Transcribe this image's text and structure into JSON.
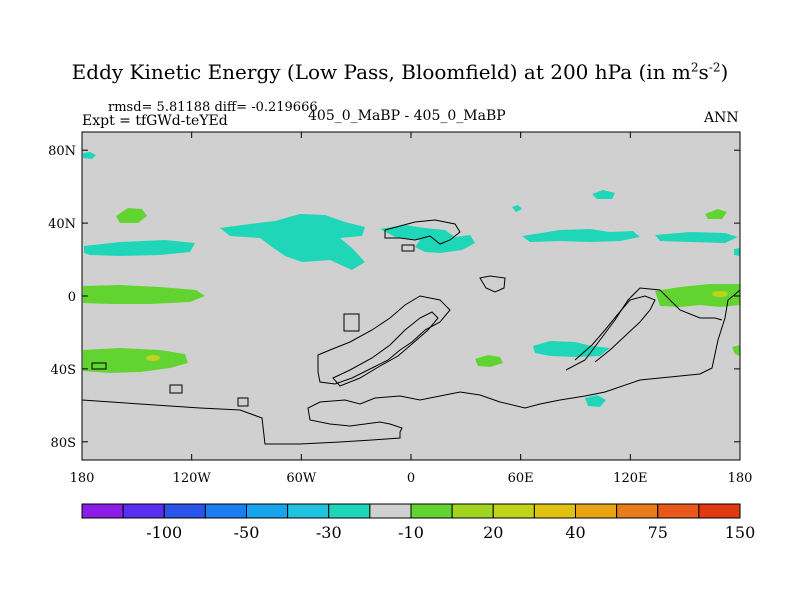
{
  "title": {
    "text": "Eddy Kinetic Energy (Low Pass, Bloomfield) at 200 hPa (in m",
    "sup1": "2",
    "mid": "s",
    "sup2": "-2",
    "end": ")"
  },
  "stats": {
    "rmsd": "rmsd= 5.81188 diff= -0.219666"
  },
  "experiment": "Expt = tfGWd-teYEd",
  "comparison": "405_0_MaBP - 405_0_MaBP",
  "season": "ANN",
  "map": {
    "lon_range": [
      -180,
      180
    ],
    "lat_range": [
      -90,
      90
    ],
    "lat_ticks": [
      {
        "v": 80,
        "label": "80N"
      },
      {
        "v": 40,
        "label": "40N"
      },
      {
        "v": 0,
        "label": "0"
      },
      {
        "v": -40,
        "label": "40S"
      },
      {
        "v": -80,
        "label": "80S"
      }
    ],
    "lon_ticks": [
      {
        "v": -180,
        "label": "180"
      },
      {
        "v": -120,
        "label": "120W"
      },
      {
        "v": -60,
        "label": "60W"
      },
      {
        "v": 0,
        "label": "0"
      },
      {
        "v": 60,
        "label": "60E"
      },
      {
        "v": 120,
        "label": "120E"
      },
      {
        "v": 180,
        "label": "180"
      }
    ],
    "background_color": "#d0d0d0",
    "palette": {
      "teal": "#1fd7b8",
      "green": "#62d431",
      "yellow": "#c0d31a"
    }
  },
  "colorbar": {
    "colors": [
      "#8a1ee6",
      "#5a2ef0",
      "#2b54e8",
      "#1a7ef0",
      "#18a4ec",
      "#20c2e0",
      "#1fd7b8",
      "#d0d0d0",
      "#62d431",
      "#a0d41e",
      "#c0d31a",
      "#e0c312",
      "#e8a412",
      "#e87c18",
      "#e8581a",
      "#e03a12"
    ],
    "labels": [
      "-100",
      "-50",
      "-30",
      "-10",
      "20",
      "40",
      "75",
      "150"
    ]
  }
}
